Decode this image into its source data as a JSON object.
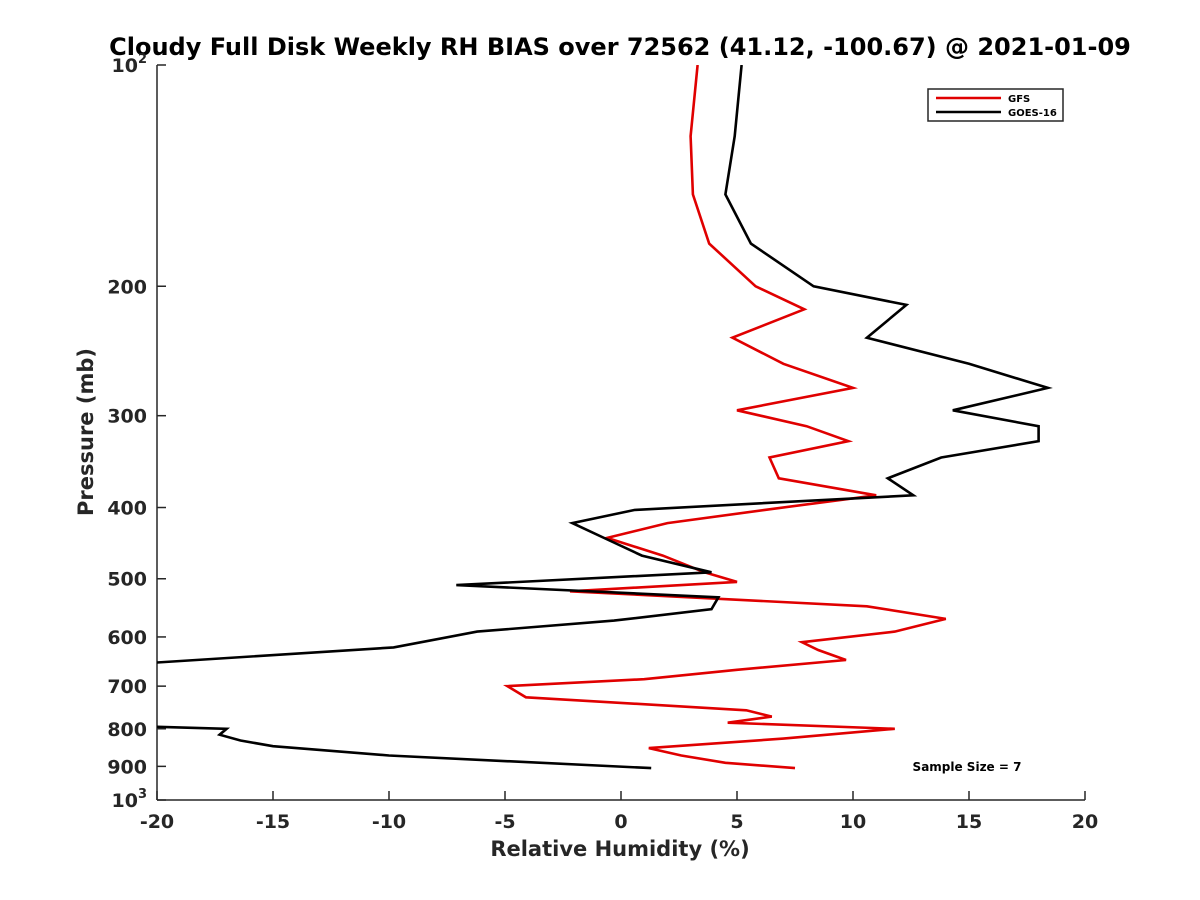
{
  "chart_data": {
    "type": "line",
    "title": "Cloudy Full Disk Weekly RH BIAS over 72562 (41.12, -100.67) @ 2021-01-09",
    "xlabel": "Relative Humidity (%)",
    "ylabel": "Pressure (mb)",
    "xlim": [
      -20,
      20
    ],
    "ylim": [
      100,
      1000
    ],
    "y_scale": "log",
    "y_reversed": true,
    "grid": false,
    "legend_position": "top-right",
    "x_ticks": [
      "-20",
      "-15",
      "-10",
      "-5",
      "0",
      "5",
      "10",
      "15",
      "20"
    ],
    "y_ticks": [
      {
        "value": 100,
        "label": "10",
        "sup": "2"
      },
      {
        "value": 200,
        "label": "200",
        "sup": ""
      },
      {
        "value": 300,
        "label": "300",
        "sup": ""
      },
      {
        "value": 400,
        "label": "400",
        "sup": ""
      },
      {
        "value": 500,
        "label": "500",
        "sup": ""
      },
      {
        "value": 600,
        "label": "600",
        "sup": ""
      },
      {
        "value": 700,
        "label": "700",
        "sup": ""
      },
      {
        "value": 800,
        "label": "800",
        "sup": ""
      },
      {
        "value": 900,
        "label": "900",
        "sup": ""
      },
      {
        "value": 1000,
        "label": "10",
        "sup": "3"
      }
    ],
    "series": [
      {
        "name": "GFS",
        "color": "#e00000",
        "points": [
          [
            3.3,
            100
          ],
          [
            3.0,
            125
          ],
          [
            3.1,
            150
          ],
          [
            3.8,
            175
          ],
          [
            5.8,
            200
          ],
          [
            7.9,
            215
          ],
          [
            4.8,
            235
          ],
          [
            7.0,
            255
          ],
          [
            10.0,
            275
          ],
          [
            5.0,
            295
          ],
          [
            8.0,
            310
          ],
          [
            9.8,
            325
          ],
          [
            6.4,
            342
          ],
          [
            6.8,
            365
          ],
          [
            11.0,
            385
          ],
          [
            6.2,
            403
          ],
          [
            2.0,
            420
          ],
          [
            -0.6,
            440
          ],
          [
            1.8,
            465
          ],
          [
            3.6,
            490
          ],
          [
            5.0,
            505
          ],
          [
            -2.2,
            520
          ],
          [
            10.6,
            545
          ],
          [
            14.0,
            567
          ],
          [
            11.8,
            590
          ],
          [
            7.8,
            610
          ],
          [
            8.5,
            625
          ],
          [
            9.7,
            645
          ],
          [
            5.0,
            665
          ],
          [
            1.0,
            685
          ],
          [
            -4.9,
            700
          ],
          [
            -4.1,
            725
          ],
          [
            5.4,
            755
          ],
          [
            6.5,
            770
          ],
          [
            4.6,
            785
          ],
          [
            11.8,
            800
          ],
          [
            7.0,
            825
          ],
          [
            1.2,
            850
          ],
          [
            2.6,
            870
          ],
          [
            4.5,
            890
          ],
          [
            7.5,
            905
          ]
        ]
      },
      {
        "name": "GOES-16",
        "color": "#000000",
        "points": [
          [
            5.2,
            100
          ],
          [
            4.9,
            125
          ],
          [
            4.5,
            150
          ],
          [
            5.6,
            175
          ],
          [
            8.3,
            200
          ],
          [
            12.3,
            212
          ],
          [
            10.6,
            235
          ],
          [
            15.0,
            255
          ],
          [
            18.4,
            275
          ],
          [
            14.3,
            295
          ],
          [
            18.0,
            310
          ],
          [
            18.0,
            325
          ],
          [
            13.8,
            342
          ],
          [
            11.5,
            365
          ],
          [
            12.6,
            385
          ],
          [
            0.6,
            403
          ],
          [
            -2.1,
            420
          ],
          [
            -0.4,
            445
          ],
          [
            0.9,
            465
          ],
          [
            3.9,
            490
          ],
          [
            -7.1,
            510
          ],
          [
            4.2,
            530
          ],
          [
            3.9,
            550
          ],
          [
            -0.3,
            570
          ],
          [
            -6.2,
            590
          ],
          [
            -9.8,
            620
          ],
          [
            -20.0,
            650
          ]
        ]
      },
      {
        "name": "GOES-16",
        "color": "#000000",
        "points": [
          [
            -20.0,
            795
          ],
          [
            -17.0,
            800
          ],
          [
            -17.3,
            815
          ],
          [
            -16.4,
            830
          ],
          [
            -15.0,
            845
          ],
          [
            -10.0,
            870
          ],
          [
            1.3,
            905
          ]
        ]
      }
    ],
    "legend": [
      {
        "name": "GFS",
        "color": "#e00000"
      },
      {
        "name": "GOES-16",
        "color": "#000000"
      }
    ],
    "annotation": "Sample Size = 7"
  }
}
